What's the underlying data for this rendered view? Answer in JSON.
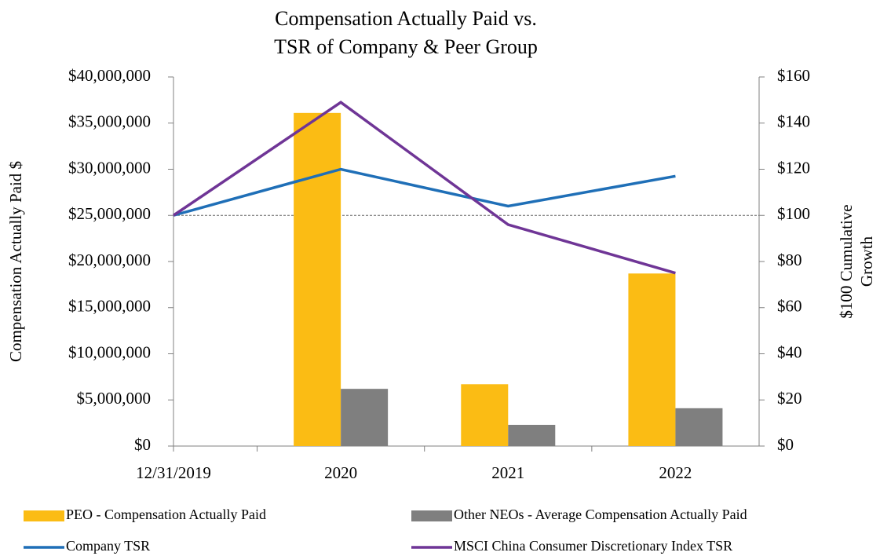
{
  "chart_data": {
    "type": "bar_line",
    "title": [
      "Compensation Actually Paid vs.",
      "TSR of Company & Peer Group"
    ],
    "y_label": "Compensation Actually Paid $",
    "y2_label": [
      "$100 Cumulative",
      "Growth"
    ],
    "categories": [
      "12/31/2019",
      "2020",
      "2021",
      "2022"
    ],
    "series": [
      {
        "name": "PEO - Compensation Actually Paid",
        "kind": "bar",
        "color": "#fbbc14",
        "values": [
          null,
          36100000,
          6700000,
          18700000
        ]
      },
      {
        "name": "Other NEOs - Average Compensation Actually Paid",
        "kind": "bar",
        "color": "#7f7f7f",
        "values": [
          null,
          6200000,
          2300000,
          4100000
        ]
      },
      {
        "name": "Company TSR",
        "kind": "line",
        "axis": "y2",
        "color": "#1f6fb7",
        "values": [
          100,
          120,
          104,
          117
        ]
      },
      {
        "name": "MSCI China Consumer Discretionary Index TSR",
        "kind": "line",
        "axis": "y2",
        "color": "#6f3596",
        "values": [
          100,
          149,
          96,
          75
        ]
      }
    ],
    "ylim": [
      0,
      40000000
    ],
    "yticks": [
      {
        "value": 0,
        "label": "$0"
      },
      {
        "value": 5000000,
        "label": "$5,000,000"
      },
      {
        "value": 10000000,
        "label": "$10,000,000"
      },
      {
        "value": 15000000,
        "label": "$15,000,000"
      },
      {
        "value": 20000000,
        "label": "$20,000,000"
      },
      {
        "value": 25000000,
        "label": "$25,000,000"
      },
      {
        "value": 30000000,
        "label": "$30,000,000"
      },
      {
        "value": 35000000,
        "label": "$35,000,000"
      },
      {
        "value": 40000000,
        "label": "$40,000,000"
      }
    ],
    "y2lim": [
      0,
      160
    ],
    "y2ticks": [
      {
        "value": 0,
        "label": "$0"
      },
      {
        "value": 20,
        "label": "$20"
      },
      {
        "value": 40,
        "label": "$40"
      },
      {
        "value": 60,
        "label": "$60"
      },
      {
        "value": 80,
        "label": "$80"
      },
      {
        "value": 100,
        "label": "$100"
      },
      {
        "value": 120,
        "label": "$120"
      },
      {
        "value": 140,
        "label": "$140"
      },
      {
        "value": 160,
        "label": "$160"
      }
    ],
    "y2_reference": 100
  }
}
